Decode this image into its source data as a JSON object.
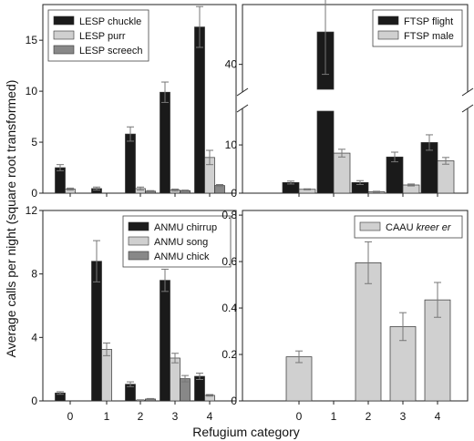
{
  "figure": {
    "ylabel": "Average calls per night (square root transformed)",
    "xlabel": "Refugium category"
  },
  "chart_data": [
    {
      "panel": "top-left",
      "type": "bar",
      "categories": [
        "0",
        "1",
        "2",
        "3",
        "4"
      ],
      "ylim": [
        0,
        18.5
      ],
      "yticks": [
        0,
        5,
        10,
        15
      ],
      "legend_position": "top-left",
      "series": [
        {
          "name": "LESP chuckle",
          "color": "#1a1a1a",
          "values": [
            2.5,
            0.45,
            5.8,
            9.9,
            16.3
          ],
          "errors": [
            0.3,
            0.15,
            0.7,
            1.0,
            2.0
          ]
        },
        {
          "name": "LESP purr",
          "color": "#d0d0d0",
          "values": [
            0.4,
            0.0,
            0.45,
            0.3,
            3.5
          ],
          "errors": [
            0.1,
            0.0,
            0.15,
            0.1,
            0.7
          ]
        },
        {
          "name": "LESP screech",
          "color": "#888888",
          "values": [
            0.0,
            0.0,
            0.2,
            0.25,
            0.75
          ],
          "errors": [
            0.0,
            0.0,
            0.05,
            0.05,
            0.1
          ]
        }
      ]
    },
    {
      "panel": "top-right",
      "type": "bar",
      "categories": [
        "0",
        "1",
        "2",
        "3",
        "4"
      ],
      "broken_axis": true,
      "lower_range": [
        0,
        17
      ],
      "upper_range": [
        35,
        52
      ],
      "yticks": [
        0,
        10,
        40
      ],
      "legend_position": "top-right",
      "series": [
        {
          "name": "FTSP flight",
          "color": "#1a1a1a",
          "values": [
            2.2,
            46.5,
            2.2,
            7.5,
            10.5
          ],
          "errors": [
            0.3,
            8.5,
            0.4,
            1.0,
            1.6
          ]
        },
        {
          "name": "FTSP male",
          "color": "#d0d0d0",
          "values": [
            0.8,
            8.3,
            0.3,
            1.7,
            6.7
          ],
          "errors": [
            0.1,
            0.8,
            0.1,
            0.2,
            0.7
          ]
        }
      ]
    },
    {
      "panel": "bottom-left",
      "type": "bar",
      "categories": [
        "0",
        "1",
        "2",
        "3",
        "4"
      ],
      "ylim": [
        0,
        12
      ],
      "yticks": [
        0,
        4,
        8,
        12
      ],
      "legend_position": "top-right",
      "series": [
        {
          "name": "ANMU chirrup",
          "color": "#1a1a1a",
          "values": [
            0.5,
            8.8,
            1.05,
            7.6,
            1.55
          ],
          "errors": [
            0.08,
            1.3,
            0.15,
            0.7,
            0.2
          ]
        },
        {
          "name": "ANMU song",
          "color": "#d0d0d0",
          "values": [
            0.0,
            3.25,
            0.05,
            2.7,
            0.35
          ],
          "errors": [
            0.0,
            0.4,
            0.02,
            0.3,
            0.05
          ]
        },
        {
          "name": "ANMU chick",
          "color": "#888888",
          "values": [
            0.0,
            0.0,
            0.12,
            1.4,
            0.0
          ],
          "errors": [
            0.0,
            0.0,
            0.03,
            0.2,
            0.0
          ]
        }
      ]
    },
    {
      "panel": "bottom-right",
      "type": "bar",
      "categories": [
        "0",
        "1",
        "2",
        "3",
        "4"
      ],
      "ylim": [
        0,
        0.82
      ],
      "yticks": [
        0.0,
        0.2,
        0.4,
        0.6,
        0.8
      ],
      "legend_position": "top-right",
      "series": [
        {
          "name": "CAAU",
          "name_italic": "kreer er",
          "color": "#d0d0d0",
          "values": [
            0.19,
            0.0,
            0.595,
            0.32,
            0.435
          ],
          "errors": [
            0.025,
            0.0,
            0.09,
            0.06,
            0.075
          ]
        }
      ]
    }
  ]
}
